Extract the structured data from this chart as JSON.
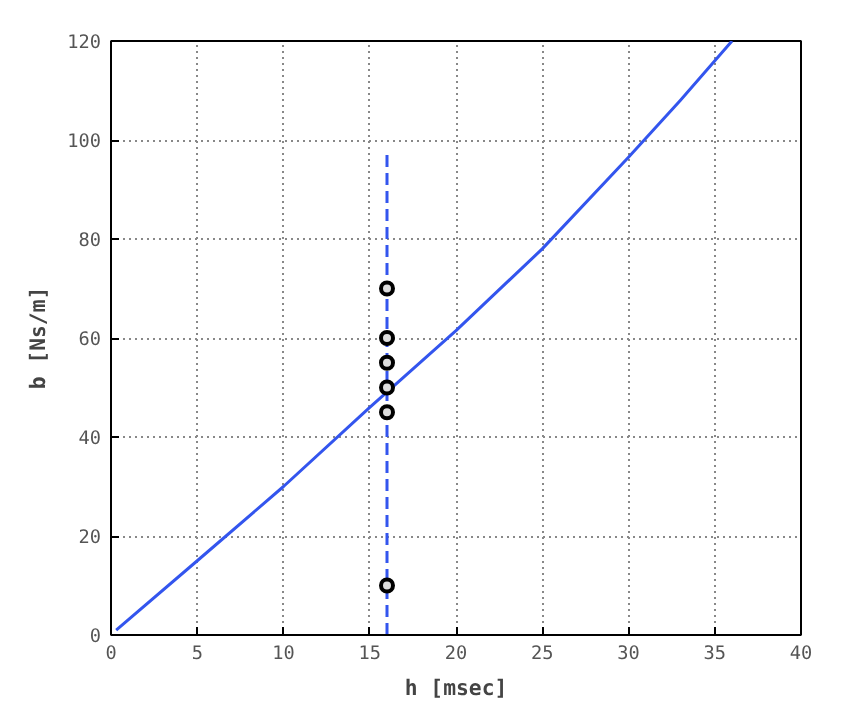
{
  "chart_data": {
    "type": "line",
    "xlabel": "h [msec]",
    "ylabel": "b [Ns/m]",
    "xlim": [
      0,
      40
    ],
    "ylim": [
      0,
      120
    ],
    "xticks": [
      0,
      5,
      10,
      15,
      20,
      25,
      30,
      35,
      40
    ],
    "yticks": [
      0,
      20,
      40,
      60,
      80,
      100,
      120
    ],
    "grid": true,
    "series": [
      {
        "color": "#3355ee",
        "line_style": "solid",
        "x": [
          0.3,
          5,
          10,
          15,
          20,
          25,
          30,
          33,
          36
        ],
        "values": [
          1,
          15,
          30,
          46,
          61.5,
          78,
          96.5,
          108,
          120
        ]
      },
      {
        "color": "#3355ee",
        "line_style": "dashed",
        "x": [
          16,
          16
        ],
        "values": [
          0,
          98
        ]
      },
      {
        "type": "scatter",
        "color": "#000000",
        "marker": "circle",
        "x": [
          16,
          16,
          16,
          16,
          16,
          16
        ],
        "values": [
          10,
          45,
          50,
          55,
          60,
          70
        ]
      }
    ]
  }
}
